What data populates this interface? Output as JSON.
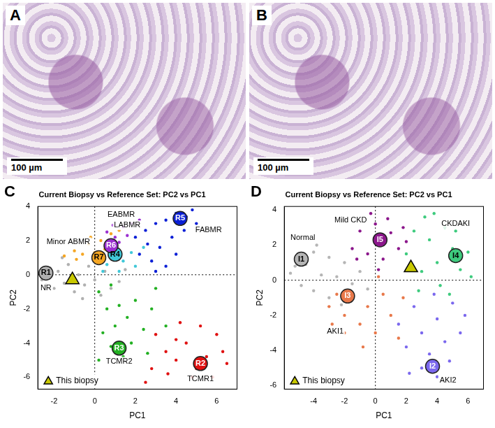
{
  "images": [
    {
      "panel_label": "A",
      "scale_bar": "100 µm"
    },
    {
      "panel_label": "B",
      "scale_bar": "100 µm"
    }
  ],
  "chart_data": [
    {
      "type": "scatter",
      "panel_label": "C",
      "title": "Current Biopsy vs Reference Set: PC2 vs PC1",
      "x_label": "PC1",
      "y_label": "PC2",
      "xlim": [
        -2.8,
        7
      ],
      "xticks": [
        -2,
        0,
        2,
        4,
        6
      ],
      "ylim": [
        -6.7,
        4
      ],
      "yticks": [
        -6,
        -4,
        -2,
        0,
        2,
        4
      ],
      "grid": false,
      "legend": "lower left",
      "zero_lines": {
        "x": 0,
        "y": 0
      },
      "series": [
        {
          "color": "#b0b0b0",
          "values": [
            [
              -2.6,
              -0.3
            ],
            [
              -2.2,
              0.4
            ],
            [
              -2,
              -0.8
            ],
            [
              -1.8,
              0.2
            ],
            [
              -1.5,
              -0.5
            ],
            [
              -1.3,
              0.6
            ],
            [
              -1,
              -1
            ],
            [
              -0.8,
              0
            ],
            [
              -0.5,
              -0.6
            ],
            [
              -0.3,
              0.5
            ],
            [
              0,
              -0.3
            ],
            [
              0.3,
              -1.2
            ],
            [
              0.5,
              0.2
            ],
            [
              0.8,
              -0.8
            ],
            [
              1.2,
              -0.4
            ],
            [
              1.5,
              0.3
            ],
            [
              -1.6,
              1
            ],
            [
              -2.4,
              -0.6
            ],
            [
              0.1,
              0.9
            ],
            [
              -0.6,
              -1.4
            ]
          ]
        },
        {
          "color": "#f5a623",
          "values": [
            [
              -1.5,
              1.1
            ],
            [
              -1,
              1.4
            ],
            [
              -0.6,
              1.2
            ],
            [
              -0.3,
              1.8
            ],
            [
              0,
              1.3
            ],
            [
              0.3,
              2
            ],
            [
              0.5,
              1.5
            ],
            [
              0.8,
              2.4
            ],
            [
              -0.9,
              0.9
            ],
            [
              0.2,
              0.9
            ],
            [
              1.2,
              2.6
            ],
            [
              -0.2,
              2.2
            ]
          ]
        },
        {
          "color": "#9b30d0",
          "values": [
            [
              0.6,
              2.5
            ],
            [
              1,
              2.2
            ],
            [
              1.4,
              2.8
            ],
            [
              1.8,
              3
            ],
            [
              1.2,
              1.9
            ],
            [
              0.9,
              2.9
            ],
            [
              2.2,
              3.2
            ],
            [
              1.6,
              2.3
            ]
          ]
        },
        {
          "color": "#40c8d8",
          "values": [
            [
              0.6,
              0.6
            ],
            [
              1,
              1
            ],
            [
              1.4,
              0.8
            ],
            [
              1.8,
              1.3
            ],
            [
              0.8,
              1.6
            ],
            [
              2,
              0.5
            ],
            [
              1.2,
              0.2
            ],
            [
              2.4,
              1.6
            ],
            [
              0.4,
              0.2
            ]
          ]
        },
        {
          "color": "#0a1fd6",
          "values": [
            [
              2,
              2.2
            ],
            [
              2.5,
              2.6
            ],
            [
              3,
              3
            ],
            [
              3.5,
              3.2
            ],
            [
              4,
              3.6
            ],
            [
              4.5,
              3.4
            ],
            [
              5,
              3
            ],
            [
              3.2,
              1.6
            ],
            [
              2.8,
              0.8
            ],
            [
              3.8,
              2.2
            ],
            [
              4.4,
              2.6
            ],
            [
              3.5,
              0.5
            ],
            [
              2.6,
              1.8
            ],
            [
              4,
              1.2
            ],
            [
              4.8,
              3.8
            ],
            [
              3,
              0.2
            ],
            [
              2.2,
              1.2
            ]
          ]
        },
        {
          "color": "#22b022",
          "values": [
            [
              0.2,
              -1
            ],
            [
              0.6,
              -2
            ],
            [
              1,
              -3
            ],
            [
              0.8,
              -4.2
            ],
            [
              1.4,
              -4.8
            ],
            [
              1.6,
              -2.5
            ],
            [
              2,
              -1.5
            ],
            [
              2.4,
              -3.2
            ],
            [
              0.4,
              -3.4
            ],
            [
              1.8,
              -4
            ],
            [
              2.8,
              -2
            ],
            [
              0.2,
              -5
            ],
            [
              1.2,
              -1.8
            ],
            [
              2.6,
              -4.6
            ],
            [
              3,
              -0.8
            ],
            [
              0.8,
              -0.6
            ],
            [
              3.5,
              -3
            ]
          ]
        },
        {
          "color": "#e01010",
          "values": [
            [
              3,
              -3.5
            ],
            [
              3.5,
              -4.5
            ],
            [
              4,
              -5
            ],
            [
              4.5,
              -4
            ],
            [
              5,
              -5.5
            ],
            [
              5.5,
              -4.8
            ],
            [
              6,
              -3.5
            ],
            [
              6.3,
              -4.5
            ],
            [
              4.8,
              -6
            ],
            [
              4.2,
              -2.8
            ],
            [
              2.8,
              -5.5
            ],
            [
              5.8,
              -6
            ],
            [
              3.6,
              -5.8
            ],
            [
              5.2,
              -3
            ],
            [
              6.5,
              -5.2
            ],
            [
              2.5,
              -6.3
            ],
            [
              4,
              -3.8
            ]
          ]
        },
        {
          "name": "This biopsy",
          "marker": "triangle",
          "color": "#c8c800",
          "values": [
            [
              -1.1,
              -0.3
            ]
          ]
        }
      ],
      "centroids": [
        {
          "label": "R1",
          "x": -2.4,
          "y": 0.1,
          "color": "#b0b0b0"
        },
        {
          "label": "R2",
          "x": 5.2,
          "y": -5.2,
          "color": "#e01010"
        },
        {
          "label": "R3",
          "x": 1.2,
          "y": -4.3,
          "color": "#22b022"
        },
        {
          "label": "R4",
          "x": 1.0,
          "y": 1.2,
          "color": "#40c8d8"
        },
        {
          "label": "R5",
          "x": 4.2,
          "y": 3.3,
          "color": "#0a1fd6"
        },
        {
          "label": "R6",
          "x": 0.8,
          "y": 1.7,
          "color": "#9b30d0"
        },
        {
          "label": "R7",
          "x": 0.2,
          "y": 1.0,
          "color": "#f5a623"
        }
      ],
      "annotations": [
        {
          "text": "NR",
          "x": -2.4,
          "y": -0.8
        },
        {
          "text": "Minor ABMR",
          "x": -1.3,
          "y": 1.9
        },
        {
          "text": "EABMR",
          "x": 1.3,
          "y": 3.5
        },
        {
          "text": "LABMR",
          "x": 1.6,
          "y": 2.9
        },
        {
          "text": "FABMR",
          "x": 5.6,
          "y": 2.6
        },
        {
          "text": "TCMR2",
          "x": 1.2,
          "y": -5.1
        },
        {
          "text": "TCMR1",
          "x": 5.2,
          "y": -6.1
        }
      ]
    },
    {
      "type": "scatter",
      "panel_label": "D",
      "title": "Current Biopsy vs Reference Set: PC2 vs PC1",
      "x_label": "PC1",
      "y_label": "PC2",
      "xlim": [
        -5.9,
        7
      ],
      "xticks": [
        -4,
        -2,
        0,
        2,
        4,
        6
      ],
      "ylim": [
        -6.2,
        4.2
      ],
      "yticks": [
        -6,
        -4,
        -2,
        0,
        2,
        4
      ],
      "grid": false,
      "legend": "lower left",
      "zero_lines": {
        "x": 0,
        "y": 0
      },
      "series": [
        {
          "color": "#b5b5b5",
          "values": [
            [
              -5.5,
              0.4
            ],
            [
              -5,
              1.5
            ],
            [
              -4.8,
              -0.3
            ],
            [
              -4.5,
              0.9
            ],
            [
              -4,
              1.6
            ],
            [
              -4,
              -0.6
            ],
            [
              -3.5,
              0.3
            ],
            [
              -3,
              1.3
            ],
            [
              -3,
              -1
            ],
            [
              -2.5,
              0.2
            ],
            [
              -2,
              1
            ],
            [
              -1.5,
              -0.2
            ],
            [
              -1,
              0.5
            ],
            [
              -0.5,
              -0.5
            ],
            [
              -5.2,
              0.8
            ],
            [
              -3.8,
              2
            ],
            [
              -2.2,
              -1.4
            ]
          ]
        },
        {
          "color": "#8b168b",
          "values": [
            [
              -1.5,
              1.8
            ],
            [
              -1,
              2.8
            ],
            [
              -0.5,
              1.5
            ],
            [
              0,
              3.2
            ],
            [
              0.3,
              2.3
            ],
            [
              0.5,
              1.2
            ],
            [
              1,
              2.7
            ],
            [
              1.5,
              1.8
            ],
            [
              -0.3,
              3.8
            ],
            [
              0.8,
              3.5
            ],
            [
              1.8,
              3
            ],
            [
              -1.2,
              1.2
            ],
            [
              2,
              2.2
            ],
            [
              0.2,
              0.6
            ]
          ]
        },
        {
          "color": "#3ecb7e",
          "values": [
            [
              2,
              1.5
            ],
            [
              2.5,
              2.8
            ],
            [
              3,
              0.5
            ],
            [
              3.5,
              2.3
            ],
            [
              4,
              1
            ],
            [
              4.5,
              3
            ],
            [
              5,
              1.8
            ],
            [
              5.5,
              0.6
            ],
            [
              6,
              1.6
            ],
            [
              3.2,
              3.6
            ],
            [
              4.2,
              -0.3
            ],
            [
              2.8,
              -0.6
            ],
            [
              5.2,
              2.8
            ],
            [
              6.2,
              0.2
            ],
            [
              3.8,
              3.8
            ],
            [
              4.8,
              -0.8
            ]
          ]
        },
        {
          "color": "#e8784a",
          "values": [
            [
              -3,
              -1.5
            ],
            [
              -2.5,
              -0.8
            ],
            [
              -2,
              -2
            ],
            [
              -1.5,
              -1
            ],
            [
              -1,
              -2.5
            ],
            [
              -0.5,
              -1.5
            ],
            [
              0,
              -3
            ],
            [
              0.5,
              -0.8
            ],
            [
              1,
              -2
            ],
            [
              1.5,
              -3.3
            ],
            [
              -2,
              -3
            ],
            [
              0.2,
              0.2
            ],
            [
              1.8,
              -1
            ],
            [
              -0.8,
              -3.8
            ],
            [
              -2.8,
              -2.5
            ]
          ]
        },
        {
          "color": "#7b68ee",
          "values": [
            [
              1.5,
              -2.5
            ],
            [
              2,
              -3.8
            ],
            [
              2.5,
              -1.5
            ],
            [
              3,
              -3
            ],
            [
              3.5,
              -4.2
            ],
            [
              4,
              -2.2
            ],
            [
              4.5,
              -3.5
            ],
            [
              5,
              -1.3
            ],
            [
              3,
              -5
            ],
            [
              2.2,
              -5.3
            ],
            [
              5.5,
              -3
            ],
            [
              4,
              -5.5
            ],
            [
              3.8,
              -0.8
            ],
            [
              5.8,
              -2
            ],
            [
              4.8,
              -4.6
            ]
          ]
        },
        {
          "name": "This biopsy",
          "marker": "triangle",
          "color": "#c8c800",
          "values": [
            [
              2.3,
              0.7
            ]
          ]
        }
      ],
      "centroids": [
        {
          "label": "I1",
          "x": -4.8,
          "y": 1.2,
          "color": "#b5b5b5"
        },
        {
          "label": "I2",
          "x": 3.7,
          "y": -4.9,
          "color": "#7b68ee"
        },
        {
          "label": "I3",
          "x": -1.8,
          "y": -0.9,
          "color": "#e8784a"
        },
        {
          "label": "I4",
          "x": 5.2,
          "y": 1.4,
          "color": "#3ecb7e"
        },
        {
          "label": "I5",
          "x": 0.3,
          "y": 2.3,
          "color": "#8b168b"
        }
      ],
      "annotations": [
        {
          "text": "Normal",
          "x": -4.7,
          "y": 2.4
        },
        {
          "text": "Mild CKD",
          "x": -1.6,
          "y": 3.4
        },
        {
          "text": "CKDAKI",
          "x": 5.2,
          "y": 3.2
        },
        {
          "text": "AKI1",
          "x": -2.6,
          "y": -2.9
        },
        {
          "text": "AKI2",
          "x": 4.7,
          "y": -5.7
        }
      ]
    }
  ]
}
